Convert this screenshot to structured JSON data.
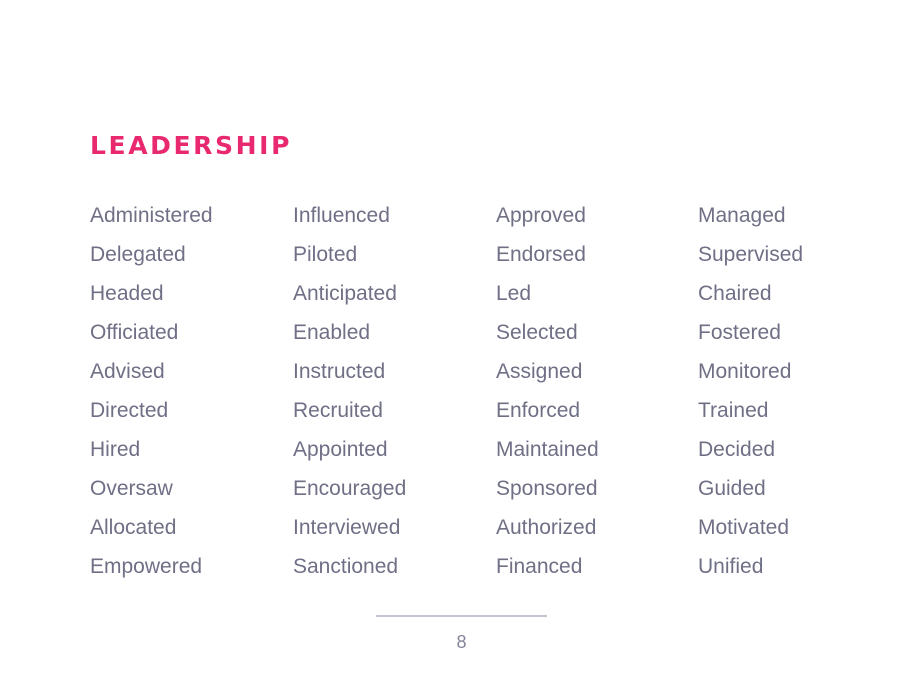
{
  "title": "LEADERSHIP",
  "columns": [
    [
      "Administered",
      "Delegated",
      "Headed",
      "Officiated",
      "Advised",
      "Directed",
      "Hired",
      "Oversaw",
      "Allocated",
      "Empowered"
    ],
    [
      "Influenced",
      "Piloted",
      "Anticipated",
      "Enabled",
      "Instructed",
      "Recruited",
      "Appointed",
      "Encouraged",
      "Interviewed",
      "Sanctioned"
    ],
    [
      "Approved",
      "Endorsed",
      "Led",
      "Selected",
      "Assigned",
      "Enforced",
      "Maintained",
      "Sponsored",
      "Authorized",
      "Financed"
    ],
    [
      "Managed",
      "Supervised",
      "Chaired",
      "Fostered",
      "Monitored",
      "Trained",
      "Decided",
      "Guided",
      "Motivated",
      "Unified"
    ]
  ],
  "page_number": "8",
  "colors": {
    "accent": "#e8286f",
    "text": "#6f6f86",
    "rule": "#c4c4cf"
  }
}
